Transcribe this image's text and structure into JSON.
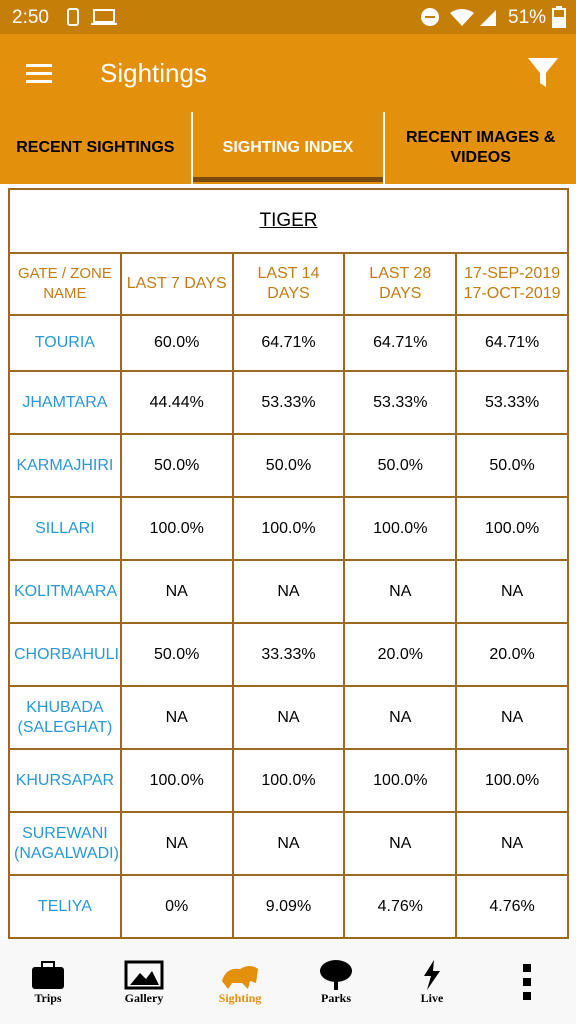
{
  "status_bar": {
    "time": "2:50",
    "battery": "51%"
  },
  "app_bar": {
    "title": "Sightings"
  },
  "tabs": [
    {
      "label": "RECENT SIGHTINGS"
    },
    {
      "label": "SIGHTING INDEX"
    },
    {
      "label": "RECENT IMAGES & VIDEOS"
    }
  ],
  "table": {
    "title": "TIGER",
    "header": [
      "GATE / ZONE NAME",
      "LAST 7 DAYS",
      "LAST 14 DAYS",
      "LAST 28 DAYS",
      "17-SEP-2019 17-OCT-2019"
    ],
    "rows": [
      [
        "TOURIA",
        "60.0%",
        "64.71%",
        "64.71%",
        "64.71%"
      ],
      [
        "JHAMTARA",
        "44.44%",
        "53.33%",
        "53.33%",
        "53.33%"
      ],
      [
        "KARMAJHIRI",
        "50.0%",
        "50.0%",
        "50.0%",
        "50.0%"
      ],
      [
        "SILLARI",
        "100.0%",
        "100.0%",
        "100.0%",
        "100.0%"
      ],
      [
        "KOLITMAARA",
        "NA",
        "NA",
        "NA",
        "NA"
      ],
      [
        "CHORBAHULI",
        "50.0%",
        "33.33%",
        "20.0%",
        "20.0%"
      ],
      [
        "KHUBADA (SALEGHAT)",
        "NA",
        "NA",
        "NA",
        "NA"
      ],
      [
        "KHURSAPAR",
        "100.0%",
        "100.0%",
        "100.0%",
        "100.0%"
      ],
      [
        "SUREWANI (NAGALWADI)",
        "NA",
        "NA",
        "NA",
        "NA"
      ],
      [
        "TELIYA",
        "0%",
        "9.09%",
        "4.76%",
        "4.76%"
      ]
    ]
  },
  "bottom_nav": [
    {
      "label": "Trips"
    },
    {
      "label": "Gallery"
    },
    {
      "label": "Sighting"
    },
    {
      "label": "Parks"
    },
    {
      "label": "Live"
    }
  ]
}
